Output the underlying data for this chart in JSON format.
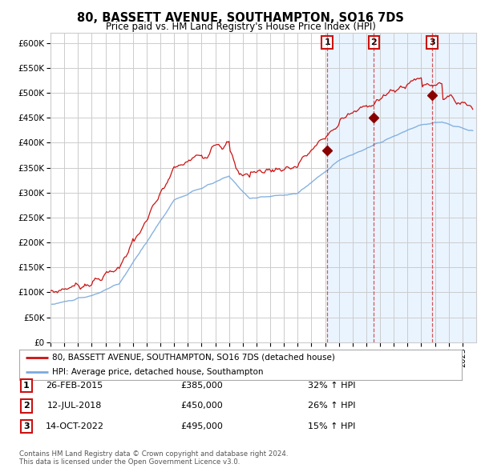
{
  "title": "80, BASSETT AVENUE, SOUTHAMPTON, SO16 7DS",
  "subtitle": "Price paid vs. HM Land Registry's House Price Index (HPI)",
  "footer": "Contains HM Land Registry data © Crown copyright and database right 2024.\nThis data is licensed under the Open Government Licence v3.0.",
  "legend_line1": "80, BASSETT AVENUE, SOUTHAMPTON, SO16 7DS (detached house)",
  "legend_line2": "HPI: Average price, detached house, Southampton",
  "transactions": [
    {
      "num": 1,
      "date": "26-FEB-2015",
      "price": 385000,
      "pct": "32%",
      "direction": "↑",
      "label": "HPI",
      "year": 2015.15
    },
    {
      "num": 2,
      "date": "12-JUL-2018",
      "price": 450000,
      "pct": "26%",
      "direction": "↑",
      "label": "HPI",
      "year": 2018.54
    },
    {
      "num": 3,
      "date": "14-OCT-2022",
      "price": 495000,
      "pct": "15%",
      "direction": "↑",
      "label": "HPI",
      "year": 2022.79
    }
  ],
  "hpi_color": "#7aaadd",
  "price_color": "#cc1111",
  "marker_color": "#880000",
  "vline_color": "#cc1111",
  "shade_color": "#ddeeff",
  "grid_color": "#cccccc",
  "background_color": "#ffffff",
  "ylim": [
    0,
    620000
  ],
  "yticks": [
    0,
    50000,
    100000,
    150000,
    200000,
    250000,
    300000,
    350000,
    400000,
    450000,
    500000,
    550000,
    600000
  ],
  "xmin": 1995,
  "xmax": 2026
}
